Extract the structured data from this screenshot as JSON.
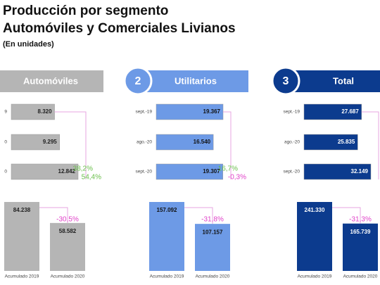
{
  "header": {
    "title": "Producción por segmento",
    "subtitle": "Automóviles y Comerciales Livianos",
    "note": "(En unidades)"
  },
  "panels": [
    {
      "title": "Automóviles",
      "color": "#b5b5b5",
      "text_color": "#222222",
      "rows": [
        {
          "label": "9",
          "value": 8320,
          "value_label": "8.320"
        },
        {
          "label": "0",
          "value": 9295,
          "value_label": "9.295"
        },
        {
          "label": "0",
          "value": 12842,
          "value_label": "12.842"
        }
      ],
      "changes": [
        {
          "text": "38,2%",
          "color": "#6abf4b"
        },
        {
          "text": "54,4%",
          "color": "#6abf4b"
        }
      ],
      "accum": {
        "labels": [
          "Acumulado 2019",
          "Acumulado 2020"
        ],
        "values": [
          84238,
          58582
        ],
        "value_labels": [
          "84.238",
          "58.582"
        ],
        "change": "-30,5%"
      }
    },
    {
      "number": "2",
      "title": "Utilitarios",
      "color": "#6d9ae6",
      "text_color": "#111111",
      "rows": [
        {
          "label": "sept.-19",
          "value": 19367,
          "value_label": "19.367"
        },
        {
          "label": "ago.-20",
          "value": 16540,
          "value_label": "16.540"
        },
        {
          "label": "sept.-20",
          "value": 19307,
          "value_label": "19.307"
        }
      ],
      "changes": [
        {
          "text": "16,7%",
          "color": "#6abf4b"
        },
        {
          "text": "-0,3%",
          "color": "#e040c8"
        }
      ],
      "accum": {
        "labels": [
          "Acumulado 2019",
          "Acumulado 2020"
        ],
        "values": [
          157092,
          107157
        ],
        "value_labels": [
          "157.092",
          "107.157"
        ],
        "change": "-31,8%"
      }
    },
    {
      "number": "3",
      "title": "Total",
      "color": "#0c3b8e",
      "text_color": "#ffffff",
      "rows": [
        {
          "label": "sept.-19",
          "value": 27687,
          "value_label": "27.687"
        },
        {
          "label": "ago.-20",
          "value": 25835,
          "value_label": "25.835"
        },
        {
          "label": "sept.-20",
          "value": 32149,
          "value_label": "32.149"
        }
      ],
      "changes": [],
      "accum": {
        "labels": [
          "Acumulado 2019",
          "Acumulado 2020"
        ],
        "values": [
          241330,
          165739
        ],
        "value_labels": [
          "241.330",
          "165.739"
        ],
        "change": "-31,3%"
      }
    }
  ]
}
